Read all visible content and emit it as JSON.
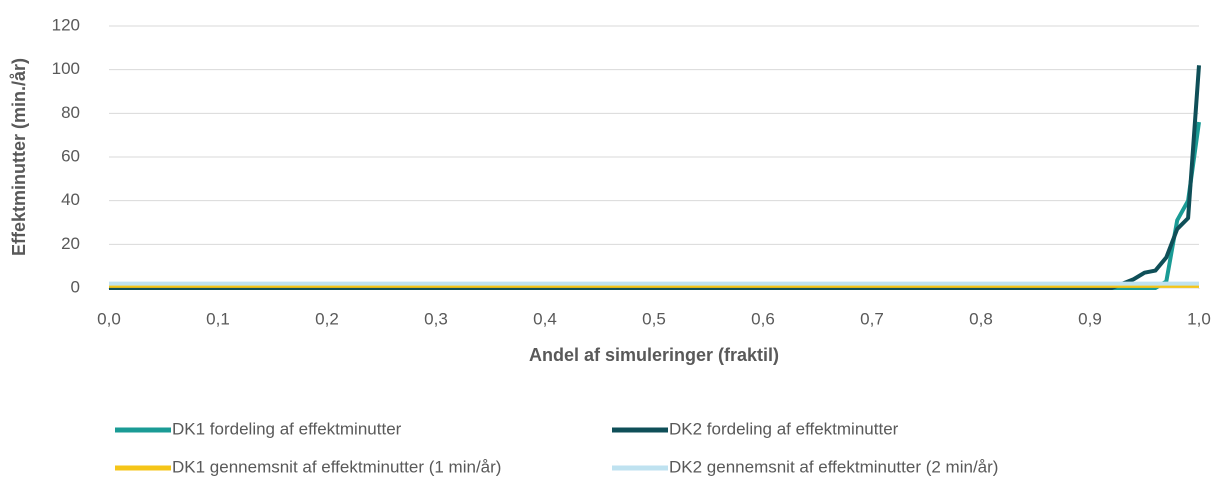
{
  "chart_data": {
    "type": "line",
    "x_label": "Andel af simuleringer (fraktil)",
    "y_label": "Effektminutter (min./år)",
    "xlim": [
      0,
      1
    ],
    "xticks": [
      {
        "value": 0,
        "label": "0,0"
      },
      {
        "value": 0.1,
        "label": "0,1"
      },
      {
        "value": 0.2,
        "label": "0,2"
      },
      {
        "value": 0.3,
        "label": "0,3"
      },
      {
        "value": 0.4,
        "label": "0,4"
      },
      {
        "value": 0.5,
        "label": "0,5"
      },
      {
        "value": 0.6,
        "label": "0,6"
      },
      {
        "value": 0.7,
        "label": "0,7"
      },
      {
        "value": 0.8,
        "label": "0,8"
      },
      {
        "value": 0.9,
        "label": "0,9"
      },
      {
        "value": 1,
        "label": "1,0"
      }
    ],
    "ylim": [
      0,
      120
    ],
    "yticks": [
      0,
      20,
      40,
      60,
      80,
      100,
      120
    ],
    "grid": true,
    "legend": "bottom",
    "series": [
      {
        "name": "DK1 fordeling af effektminutter",
        "color": "#1a9b95",
        "x": [
          0,
          0.96,
          0.97,
          0.98,
          0.99,
          1.0
        ],
        "values": [
          0,
          0,
          3,
          31,
          40,
          76
        ]
      },
      {
        "name": "DK2 fordeling af effektminutter",
        "color": "#0f4f58",
        "x": [
          0,
          0.92,
          0.93,
          0.94,
          0.95,
          0.96,
          0.97,
          0.98,
          0.99,
          1.0
        ],
        "values": [
          0,
          0,
          2,
          4,
          7,
          8,
          14,
          27,
          32,
          102
        ]
      },
      {
        "name": "DK1 gennemsnit af effektminutter (1 min/år)",
        "color": "#f5c518",
        "x": [
          0,
          1
        ],
        "values": [
          1,
          1
        ]
      },
      {
        "name": "DK2 gennemsnit af effektminutter (2 min/år)",
        "color": "#bfe2f0",
        "x": [
          0,
          1
        ],
        "values": [
          2,
          2
        ]
      }
    ]
  }
}
